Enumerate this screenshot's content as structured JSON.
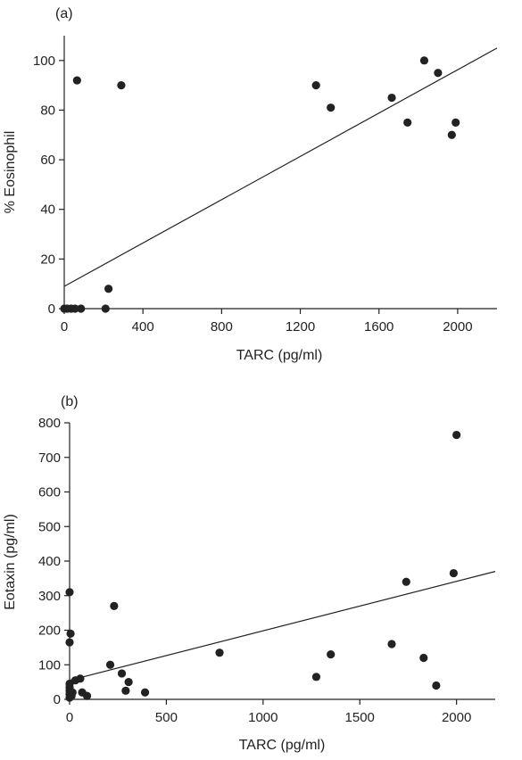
{
  "chart_data": [
    {
      "type": "scatter",
      "panel_label": "(a)",
      "xlabel": "TARC (pg/ml)",
      "ylabel": "% Eosinophil",
      "xlim": [
        0,
        2200
      ],
      "ylim": [
        0,
        110
      ],
      "xticks": [
        0,
        400,
        800,
        1200,
        1600,
        2000
      ],
      "yticks": [
        0,
        20,
        40,
        60,
        80,
        100
      ],
      "grid": false,
      "points": [
        {
          "x": 0,
          "y": 0
        },
        {
          "x": 15,
          "y": 0
        },
        {
          "x": 35,
          "y": 0
        },
        {
          "x": 55,
          "y": 0
        },
        {
          "x": 85,
          "y": 0
        },
        {
          "x": 210,
          "y": 0
        },
        {
          "x": 225,
          "y": 8
        },
        {
          "x": 65,
          "y": 92
        },
        {
          "x": 290,
          "y": 90
        },
        {
          "x": 1280,
          "y": 90
        },
        {
          "x": 1355,
          "y": 81
        },
        {
          "x": 1665,
          "y": 85
        },
        {
          "x": 1745,
          "y": 75
        },
        {
          "x": 1830,
          "y": 100
        },
        {
          "x": 1900,
          "y": 95
        },
        {
          "x": 1970,
          "y": 70
        },
        {
          "x": 1990,
          "y": 75
        }
      ],
      "trendline": {
        "x": [
          0,
          2200
        ],
        "y": [
          9,
          105
        ]
      }
    },
    {
      "type": "scatter",
      "panel_label": "(b)",
      "xlabel": "TARC (pg/ml)",
      "ylabel": "Eotaxin (pg/ml)",
      "xlim": [
        0,
        2200
      ],
      "ylim": [
        0,
        800
      ],
      "xticks": [
        0,
        500,
        1000,
        1500,
        2000
      ],
      "yticks": [
        0,
        100,
        200,
        300,
        400,
        500,
        600,
        700,
        800
      ],
      "grid": false,
      "points": [
        {
          "x": 0,
          "y": 5
        },
        {
          "x": 0,
          "y": 15
        },
        {
          "x": 0,
          "y": 25
        },
        {
          "x": 0,
          "y": 35
        },
        {
          "x": 0,
          "y": 45
        },
        {
          "x": 10,
          "y": 10
        },
        {
          "x": 15,
          "y": 20
        },
        {
          "x": 30,
          "y": 55
        },
        {
          "x": 55,
          "y": 60
        },
        {
          "x": 65,
          "y": 20
        },
        {
          "x": 90,
          "y": 10
        },
        {
          "x": 0,
          "y": 165
        },
        {
          "x": 5,
          "y": 190
        },
        {
          "x": 0,
          "y": 310
        },
        {
          "x": 210,
          "y": 100
        },
        {
          "x": 230,
          "y": 270
        },
        {
          "x": 270,
          "y": 75
        },
        {
          "x": 290,
          "y": 25
        },
        {
          "x": 305,
          "y": 50
        },
        {
          "x": 390,
          "y": 20
        },
        {
          "x": 775,
          "y": 135
        },
        {
          "x": 1275,
          "y": 65
        },
        {
          "x": 1350,
          "y": 130
        },
        {
          "x": 1665,
          "y": 160
        },
        {
          "x": 1740,
          "y": 340
        },
        {
          "x": 1830,
          "y": 120
        },
        {
          "x": 1895,
          "y": 40
        },
        {
          "x": 1985,
          "y": 365
        },
        {
          "x": 2000,
          "y": 765
        }
      ],
      "trendline": {
        "x": [
          0,
          2200
        ],
        "y": [
          55,
          370
        ]
      }
    }
  ]
}
